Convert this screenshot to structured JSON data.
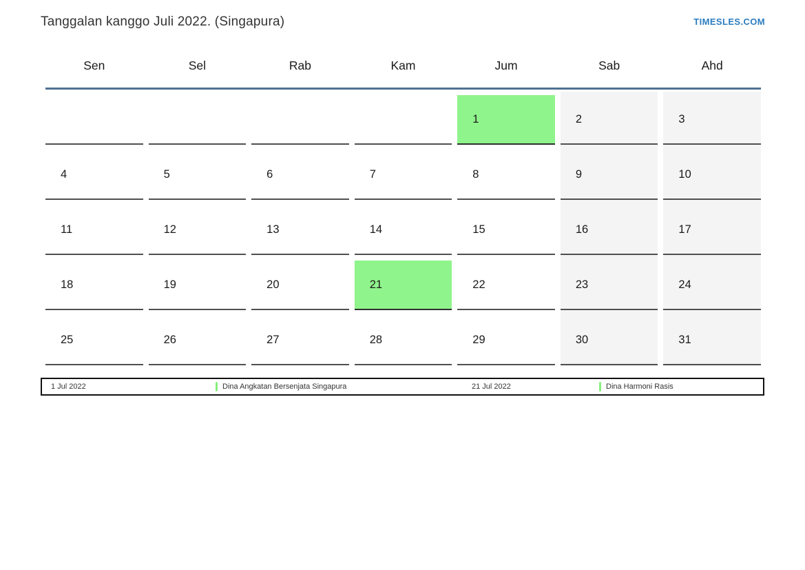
{
  "title": "Tanggalan kanggo Juli 2022. (Singapura)",
  "site_link": "TIMESLES.COM",
  "colors": {
    "accent_blue": "#2b7cc0",
    "header_underline": "#4e7191",
    "highlight_green": "#90f48c",
    "weekend_gray": "#f4f4f4",
    "legend_marker_green": "#86ef7e"
  },
  "weekdays": [
    "Sen",
    "Sel",
    "Rab",
    "Kam",
    "Jum",
    "Sab",
    "Ahd"
  ],
  "weeks": [
    [
      "",
      "",
      "",
      "",
      "1",
      "2",
      "3"
    ],
    [
      "4",
      "5",
      "6",
      "7",
      "8",
      "9",
      "10"
    ],
    [
      "11",
      "12",
      "13",
      "14",
      "15",
      "16",
      "17"
    ],
    [
      "18",
      "19",
      "20",
      "21",
      "22",
      "23",
      "24"
    ],
    [
      "25",
      "26",
      "27",
      "28",
      "29",
      "30",
      "31"
    ]
  ],
  "highlighted_days": [
    "1",
    "21"
  ],
  "legend": [
    {
      "date": "1 Jul 2022",
      "label": "Dina Angkatan Bersenjata Singapura"
    },
    {
      "date": "21 Jul 2022",
      "label": "Dina Harmoni Rasis"
    }
  ]
}
